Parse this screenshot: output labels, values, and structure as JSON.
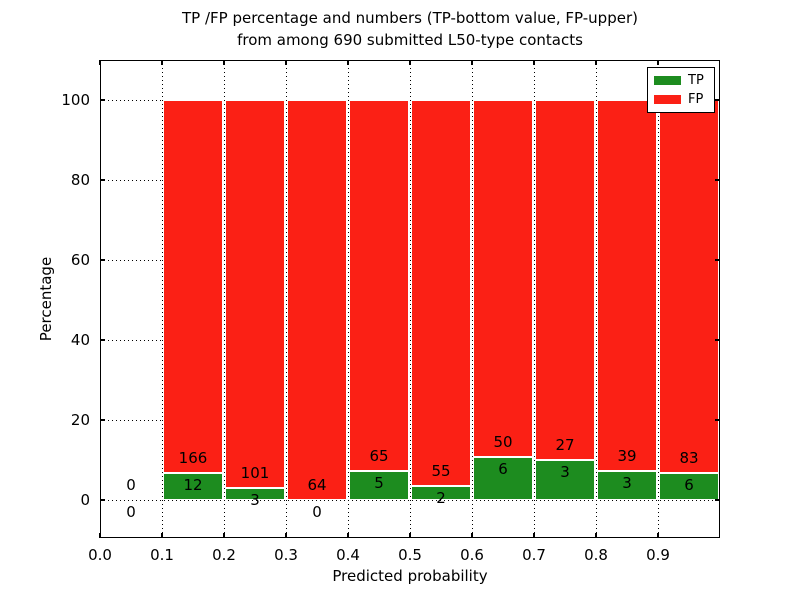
{
  "chart_data": {
    "type": "bar",
    "stacked": true,
    "normalized_to_percent": true,
    "title_line1": "TP /FP percentage and numbers (TP-bottom value, FP-upper)",
    "title_line2": "from among 690 submitted L50-type contacts",
    "xlabel": "Predicted probability",
    "ylabel": "Percentage",
    "xlim": [
      0,
      1
    ],
    "ylim": [
      -9.5,
      110
    ],
    "x_tick_labels": [
      "0.0",
      "0.1",
      "0.2",
      "0.3",
      "0.4",
      "0.5",
      "0.6",
      "0.7",
      "0.8",
      "0.9"
    ],
    "y_tick_values": [
      0,
      20,
      40,
      60,
      80,
      100
    ],
    "bin_edges": [
      0.0,
      0.1,
      0.2,
      0.3,
      0.4,
      0.5,
      0.6,
      0.7,
      0.8,
      0.9,
      1.0
    ],
    "series": [
      {
        "name": "TP",
        "color": "#1d8c1f",
        "counts": [
          0,
          12,
          3,
          0,
          5,
          2,
          6,
          3,
          3,
          6
        ]
      },
      {
        "name": "FP",
        "color": "#fb2015",
        "counts": [
          0,
          166,
          101,
          64,
          65,
          55,
          50,
          27,
          39,
          83
        ]
      }
    ],
    "total_submitted": 690,
    "grid": "dotted",
    "legend_position": "upper right",
    "colors": {
      "tp": "#1d8c1f",
      "fp": "#fb2015",
      "text": "#000000",
      "background": "#ffffff"
    }
  }
}
